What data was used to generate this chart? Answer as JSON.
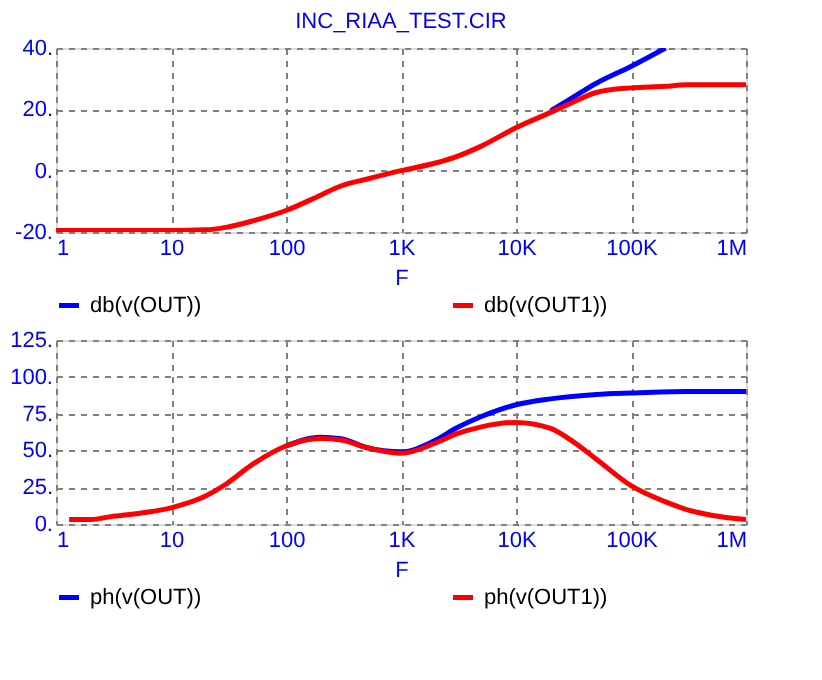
{
  "chart_data": [
    {
      "type": "line",
      "title": "INC_RIAA_TEST.CIR",
      "xlabel": "F",
      "log": "x",
      "grid": true,
      "legend": "bottom",
      "xlim": [
        1,
        1000000
      ],
      "xticks": [
        {
          "value": 1,
          "label": "1"
        },
        {
          "value": 10,
          "label": "10"
        },
        {
          "value": 100,
          "label": "100"
        },
        {
          "value": 1000,
          "label": "1K"
        },
        {
          "value": 10000,
          "label": "10K"
        },
        {
          "value": 100000,
          "label": "100K"
        },
        {
          "value": 1000000,
          "label": "1M"
        }
      ],
      "ylim": [
        -20,
        40
      ],
      "yticks": [
        {
          "value": -20,
          "label": "-20."
        },
        {
          "value": 0,
          "label": "0."
        },
        {
          "value": 20,
          "label": "20."
        },
        {
          "value": 40,
          "label": "40."
        }
      ],
      "series": [
        {
          "name": "db(v(OUT))",
          "color": "#0000ff",
          "x": [
            20000,
            30000,
            50000,
            100000,
            200000
          ],
          "values": [
            19.5,
            23.5,
            28.5,
            34,
            40
          ]
        },
        {
          "name": "db(v(OUT1))",
          "color": "#ff0000",
          "x": [
            1,
            10,
            20,
            30,
            50,
            100,
            200,
            300,
            500,
            1000,
            2000,
            3000,
            5000,
            10000,
            20000,
            30000,
            50000,
            100000,
            200000,
            300000,
            1000000
          ],
          "values": [
            -19.5,
            -19.5,
            -19.3,
            -18.5,
            -16.5,
            -13,
            -8,
            -5,
            -2.8,
            0,
            2.5,
            4.5,
            8,
            14,
            19,
            22,
            25.5,
            27,
            27.5,
            28,
            28
          ]
        }
      ]
    },
    {
      "type": "line",
      "xlabel": "F",
      "log": "x",
      "grid": true,
      "legend": "bottom",
      "xlim": [
        1,
        1000000
      ],
      "xticks": [
        {
          "value": 1,
          "label": "1"
        },
        {
          "value": 10,
          "label": "10"
        },
        {
          "value": 100,
          "label": "100"
        },
        {
          "value": 1000,
          "label": "1K"
        },
        {
          "value": 10000,
          "label": "10K"
        },
        {
          "value": 100000,
          "label": "100K"
        },
        {
          "value": 1000000,
          "label": "1M"
        }
      ],
      "ylim": [
        0,
        125
      ],
      "yticks": [
        {
          "value": 0,
          "label": "0."
        },
        {
          "value": 25,
          "label": "25."
        },
        {
          "value": 50,
          "label": "50."
        },
        {
          "value": 75,
          "label": "75."
        },
        {
          "value": 100,
          "label": "100."
        },
        {
          "value": 125,
          "label": "125."
        }
      ],
      "series": [
        {
          "name": "ph(v(OUT))",
          "color": "#0000ff",
          "x": [
            100,
            200,
            300,
            500,
            1000,
            2000,
            3000,
            5000,
            10000,
            20000,
            50000,
            100000,
            300000,
            1000000
          ],
          "values": [
            53,
            59,
            58,
            52,
            49,
            57,
            65,
            73,
            81,
            85,
            88,
            89,
            90,
            90
          ]
        },
        {
          "name": "ph(v(OUT1))",
          "color": "#ff0000",
          "x": [
            1.3,
            2,
            3,
            5,
            10,
            20,
            30,
            50,
            100,
            200,
            300,
            500,
            1000,
            2000,
            3000,
            5000,
            10000,
            20000,
            30000,
            50000,
            100000,
            200000,
            300000,
            500000,
            1000000
          ],
          "values": [
            3,
            3,
            5,
            7,
            11,
            19,
            27,
            40,
            53,
            58,
            57,
            52,
            48,
            55,
            61,
            66,
            69,
            65,
            57,
            44,
            26,
            15,
            10,
            6,
            3
          ]
        }
      ]
    }
  ]
}
